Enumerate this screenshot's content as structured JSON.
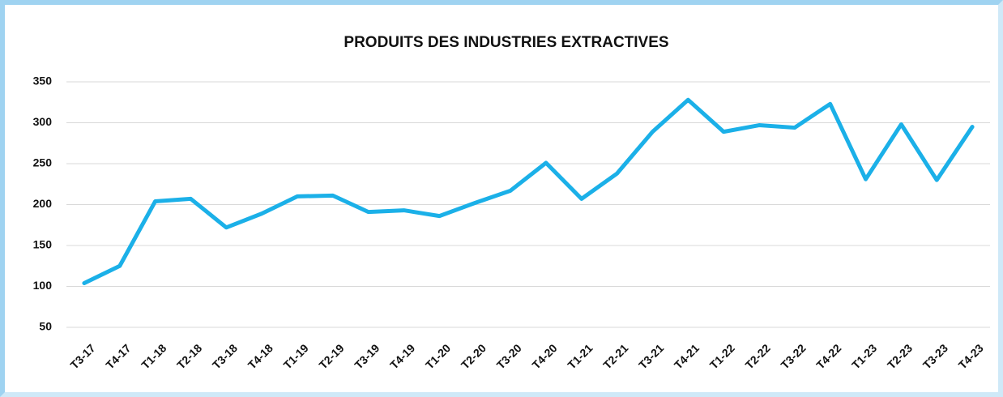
{
  "chart_data": {
    "type": "line",
    "title": "PRODUITS DES INDUSTRIES EXTRACTIVES",
    "categories": [
      "T3-17",
      "T4-17",
      "T1-18",
      "T2-18",
      "T3-18",
      "T4-18",
      "T1-19",
      "T2-19",
      "T3-19",
      "T4-19",
      "T1-20",
      "T2-20",
      "T3-20",
      "T4-20",
      "T1-21",
      "T2-21",
      "T3-21",
      "T4-21",
      "T1-22",
      "T2-22",
      "T3-22",
      "T4-22",
      "T1-23",
      "T2-23",
      "T3-23",
      "T4-23"
    ],
    "series": [
      {
        "name": "PRODUITS DES INDUSTRIES EXTRACTIVES",
        "color": "#1bb0e8",
        "values": [
          104,
          125,
          204,
          207,
          172,
          189,
          210,
          211,
          191,
          193,
          186,
          202,
          217,
          251,
          207,
          238,
          289,
          328,
          289,
          297,
          294,
          323,
          231,
          298,
          230,
          295
        ]
      }
    ],
    "ylim": [
      50,
      350
    ],
    "yticks": [
      50,
      100,
      150,
      200,
      250,
      300,
      350
    ],
    "grid": true
  }
}
